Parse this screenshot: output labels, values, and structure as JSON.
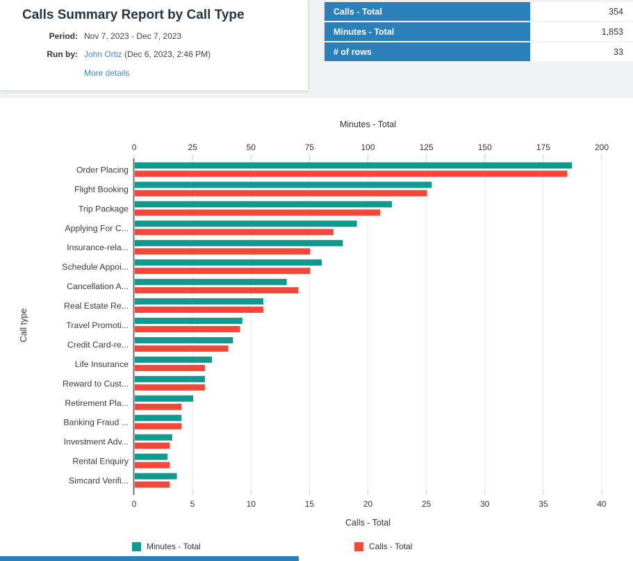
{
  "header": {
    "title": "Calls Summary Report by Call Type",
    "period_label": "Period:",
    "period_value": "Nov 7, 2023 - Dec 7, 2023",
    "run_by_label": "Run by:",
    "run_by_user": "John Ortiz",
    "run_by_time": "(Dec 6, 2023, 2:46 PM)",
    "more_details": "More details"
  },
  "summary_table": {
    "rows": [
      {
        "label": "Calls - Total",
        "value": "354"
      },
      {
        "label": "Minutes - Total",
        "value": "1,853"
      },
      {
        "label": "# of rows",
        "value": "33"
      }
    ]
  },
  "chart_data": {
    "type": "bar",
    "orientation": "horizontal",
    "title": "",
    "ylabel": "Call type",
    "grid": true,
    "legend_position": "bottom",
    "categories": [
      "Order Placing",
      "Flight Booking",
      "Trip Package",
      "Applying For C...",
      "Insurance-rela...",
      "Schedule Appoi...",
      "Cancellation A...",
      "Real Estate Re...",
      "Travel Promoti...",
      "Credit Card-re...",
      "Life Insurance",
      "Reward to Cust...",
      "Retirement Pla...",
      "Banking Fraud ...",
      "Investment Adv...",
      "Rental Enquiry",
      "Simcard Verifi..."
    ],
    "series": [
      {
        "name": "Minutes - Total",
        "axis": "top",
        "color": "#109a8f",
        "values": [
          187,
          127,
          110,
          95,
          89,
          80,
          65,
          55,
          46,
          42,
          33,
          30,
          25,
          20,
          16,
          14,
          18
        ]
      },
      {
        "name": "Calls - Total",
        "axis": "bottom",
        "color": "#f4473c",
        "values": [
          37,
          25,
          21,
          17,
          15,
          15,
          14,
          11,
          9,
          8,
          6,
          6,
          4,
          4,
          3,
          3,
          3
        ]
      }
    ],
    "top_axis": {
      "label": "Minutes - Total",
      "min": 0,
      "max": 200,
      "step": 25,
      "ticks": [
        0,
        25,
        50,
        75,
        100,
        125,
        150,
        175,
        200
      ]
    },
    "bottom_axis": {
      "label": "Calls - Total",
      "min": 0,
      "max": 40,
      "step": 5,
      "ticks": [
        0,
        5,
        10,
        15,
        20,
        25,
        30,
        35,
        40
      ]
    }
  },
  "colors": {
    "table_header_blue": "#2b80b9",
    "series_minutes_teal": "#109a8f",
    "series_calls_red": "#f4473c",
    "title_navy": "#253746",
    "link_blue": "#4a86c5",
    "gridline": "#e8e8e8",
    "band_gray": "#f0f1f2"
  }
}
